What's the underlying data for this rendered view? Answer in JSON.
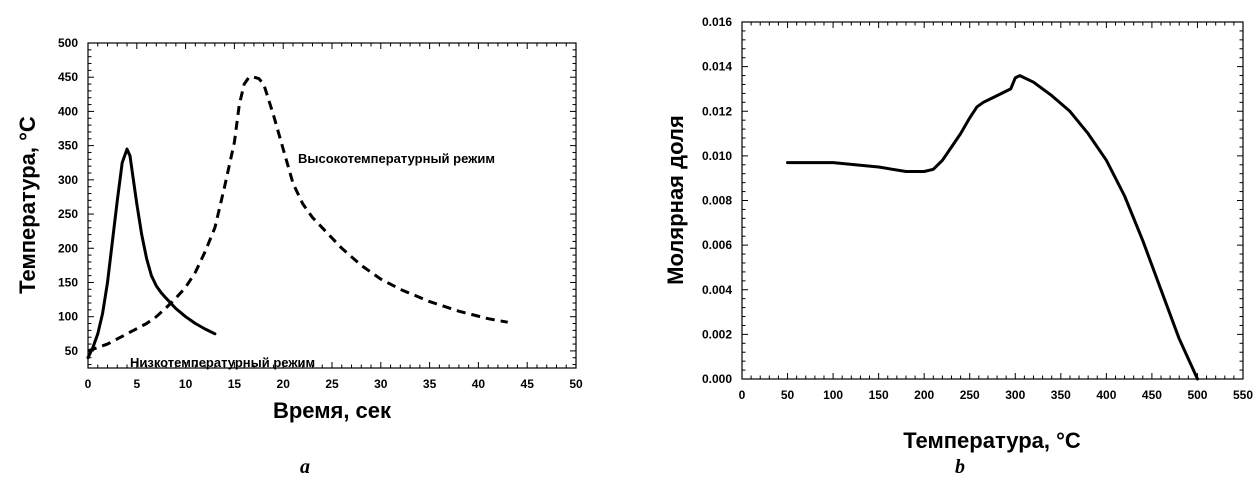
{
  "chart_data": [
    {
      "type": "line",
      "panel_label": "a",
      "xlabel": "Время, сек",
      "ylabel": "Температура, °C",
      "xlim": [
        0,
        50
      ],
      "ylim": [
        25,
        500
      ],
      "xticks": [
        0,
        5,
        10,
        15,
        20,
        25,
        30,
        35,
        40,
        45,
        50
      ],
      "yticks": [
        50,
        100,
        150,
        200,
        250,
        300,
        350,
        400,
        450,
        500
      ],
      "grid": false,
      "series": [
        {
          "name": "Низкотемпературный режим",
          "style": "solid",
          "x": [
            0,
            0.5,
            1,
            1.5,
            2,
            2.5,
            3,
            3.5,
            4,
            4.3,
            4.6,
            5,
            5.5,
            6,
            6.5,
            7,
            7.5,
            8,
            9,
            10,
            11,
            12,
            13
          ],
          "y": [
            40,
            55,
            75,
            105,
            150,
            210,
            270,
            325,
            345,
            335,
            305,
            265,
            220,
            185,
            160,
            145,
            135,
            127,
            112,
            100,
            90,
            82,
            75
          ]
        },
        {
          "name": "Высокотемпературный режим",
          "style": "dashed",
          "x": [
            0,
            2,
            4,
            6,
            7,
            8,
            9,
            10,
            11,
            12,
            13,
            14,
            15,
            15.5,
            16,
            16.5,
            17,
            17.5,
            18,
            19,
            20,
            21,
            22,
            23,
            24,
            26,
            28,
            30,
            32,
            35,
            38,
            41,
            43
          ],
          "y": [
            50,
            60,
            75,
            90,
            100,
            113,
            127,
            143,
            165,
            195,
            230,
            290,
            355,
            410,
            440,
            450,
            450,
            448,
            440,
            395,
            345,
            295,
            265,
            245,
            230,
            200,
            175,
            155,
            140,
            122,
            108,
            97,
            92
          ]
        }
      ]
    },
    {
      "type": "line",
      "panel_label": "b",
      "xlabel": "Температура, °C",
      "ylabel": "Молярная доля",
      "xlim": [
        0,
        550
      ],
      "ylim": [
        0,
        0.016
      ],
      "xticks": [
        0,
        50,
        100,
        150,
        200,
        250,
        300,
        350,
        400,
        450,
        500,
        550
      ],
      "yticks": [
        0.0,
        0.002,
        0.004,
        0.006,
        0.008,
        0.01,
        0.012,
        0.014,
        0.016
      ],
      "ytick_labels": [
        "0.000",
        "0.002",
        "0.004",
        "0.006",
        "0.008",
        "0.010",
        "0.012",
        "0.014",
        "0.016"
      ],
      "grid": false,
      "series": [
        {
          "style": "solid",
          "x": [
            50,
            100,
            150,
            180,
            200,
            210,
            220,
            230,
            240,
            250,
            258,
            265,
            275,
            285,
            295,
            300,
            305,
            320,
            340,
            360,
            380,
            400,
            420,
            440,
            460,
            480,
            500
          ],
          "y": [
            0.0097,
            0.0097,
            0.0095,
            0.0093,
            0.0093,
            0.0094,
            0.0098,
            0.0104,
            0.011,
            0.0117,
            0.0122,
            0.0124,
            0.0126,
            0.0128,
            0.013,
            0.0135,
            0.0136,
            0.0133,
            0.0127,
            0.012,
            0.011,
            0.0098,
            0.0082,
            0.0062,
            0.004,
            0.0018,
            0.0
          ]
        }
      ]
    }
  ],
  "annotations": {
    "high_mode": "Высокотемпературный режим",
    "low_mode": "Низкотемпературный режим"
  }
}
